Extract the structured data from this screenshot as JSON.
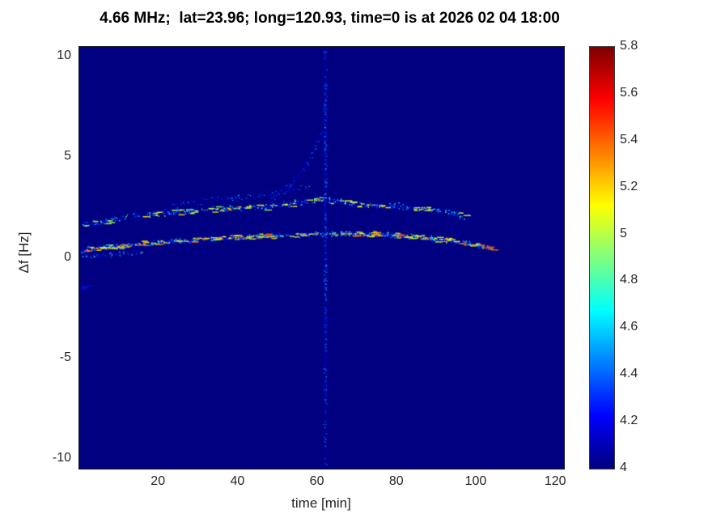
{
  "chart_data": {
    "type": "heatmap",
    "title": "4.66 MHz;  lat=23.96; long=120.93, time=0 is at 2026 02 04 18:00",
    "xlabel": "time [min]",
    "ylabel": "Δf [Hz]",
    "xlim": [
      0,
      122
    ],
    "ylim": [
      -10.5,
      10.5
    ],
    "xticks": [
      "20",
      "40",
      "60",
      "80",
      "100",
      "120"
    ],
    "yticks": [
      "-10",
      "-5",
      "0",
      "5",
      "10"
    ],
    "grid": false,
    "seed": 42,
    "background_value": 4,
    "colorbar": {
      "colormap": "jet",
      "range": [
        4,
        5.8
      ],
      "tick_labels": [
        "4",
        "4.2",
        "4.4",
        "4.6",
        "4.8",
        "5",
        "5.2",
        "5.4",
        "5.6",
        "5.8"
      ],
      "position": "right"
    },
    "features": [
      {
        "name": "upper-doppler-trace",
        "kind": "path",
        "points": [
          [
            0.5,
            1.6
          ],
          [
            6,
            1.8
          ],
          [
            12,
            2.0
          ],
          [
            18,
            2.15
          ],
          [
            24,
            2.3
          ],
          [
            30,
            2.35
          ],
          [
            36,
            2.45
          ],
          [
            42,
            2.5
          ],
          [
            48,
            2.55
          ],
          [
            54,
            2.7
          ],
          [
            60,
            2.9
          ],
          [
            64,
            2.85
          ],
          [
            68,
            2.7
          ],
          [
            72,
            2.6
          ],
          [
            76,
            2.6
          ],
          [
            80,
            2.6
          ],
          [
            84,
            2.5
          ],
          [
            88,
            2.4
          ],
          [
            92,
            2.3
          ],
          [
            96,
            2.1
          ],
          [
            99,
            2.0
          ]
        ],
        "n": 820,
        "f_jitter": 0.18,
        "v_range": [
          4.08,
          5.2
        ],
        "v_power": 3,
        "size": 1.5
      },
      {
        "name": "upper-secondary-branch",
        "kind": "path",
        "points": [
          [
            22,
            2.6
          ],
          [
            30,
            2.8
          ],
          [
            38,
            2.95
          ],
          [
            46,
            3.1
          ],
          [
            54,
            3.4
          ],
          [
            58,
            3.6
          ]
        ],
        "n": 180,
        "f_jitter": 0.2,
        "v_range": [
          4.05,
          4.6
        ],
        "v_power": 2.5,
        "size": 1.2
      },
      {
        "name": "lower-doppler-trace",
        "kind": "path",
        "points": [
          [
            0.5,
            0.35
          ],
          [
            6,
            0.5
          ],
          [
            12,
            0.62
          ],
          [
            18,
            0.72
          ],
          [
            24,
            0.82
          ],
          [
            30,
            0.9
          ],
          [
            36,
            0.97
          ],
          [
            42,
            1.03
          ],
          [
            48,
            1.08
          ],
          [
            54,
            1.13
          ],
          [
            60,
            1.17
          ],
          [
            66,
            1.2
          ],
          [
            72,
            1.18
          ],
          [
            78,
            1.12
          ],
          [
            84,
            1.05
          ],
          [
            90,
            0.92
          ],
          [
            95,
            0.8
          ],
          [
            100,
            0.62
          ],
          [
            104,
            0.45
          ]
        ],
        "n": 1050,
        "f_jitter": 0.15,
        "v_range": [
          4.1,
          5.45
        ],
        "v_power": 2.6,
        "size": 1.5
      },
      {
        "name": "near-zero-faint-trace",
        "kind": "path",
        "points": [
          [
            0.5,
            0.05
          ],
          [
            8,
            0.15
          ],
          [
            16,
            0.3
          ]
        ],
        "n": 120,
        "f_jitter": 0.12,
        "v_range": [
          4.05,
          4.9
        ],
        "v_power": 3,
        "size": 1.3
      },
      {
        "name": "left-edge-cluster",
        "kind": "path",
        "points": [
          [
            0.5,
            -1.5
          ],
          [
            3,
            -1.45
          ]
        ],
        "n": 40,
        "f_jitter": 0.15,
        "v_range": [
          4.05,
          4.4
        ],
        "v_power": 2.5,
        "size": 1.2
      },
      {
        "name": "vertical-interference-line",
        "kind": "vline",
        "t": 62,
        "f_range": [
          -10.4,
          10.4
        ],
        "t_jitter": 0.5,
        "n": 520,
        "v_range": [
          4.05,
          4.55
        ],
        "v_power": 2.2,
        "size": 1.2
      },
      {
        "name": "vertical-line-dense-core",
        "kind": "vline",
        "t": 62,
        "f_range": [
          -2,
          8
        ],
        "t_jitter": 0.35,
        "n": 220,
        "v_range": [
          4.08,
          4.7
        ],
        "v_power": 2.4,
        "size": 1.2
      },
      {
        "name": "diagonal-upward-streak",
        "kind": "path",
        "points": [
          [
            48,
            2.8
          ],
          [
            54,
            3.8
          ],
          [
            58,
            4.8
          ],
          [
            61,
            6.2
          ],
          [
            62,
            7.5
          ]
        ],
        "n": 160,
        "f_jitter": 0.25,
        "v_range": [
          4.05,
          4.5
        ],
        "v_power": 2.4,
        "size": 1.2
      },
      {
        "name": "diffuse-speckle-cloud",
        "kind": "cloud",
        "t_range": [
          15,
          95
        ],
        "f_range": [
          0.2,
          2.6
        ],
        "n": 350,
        "v_range": [
          4.03,
          4.25
        ],
        "v_power": 2,
        "size": 1.1
      }
    ]
  }
}
